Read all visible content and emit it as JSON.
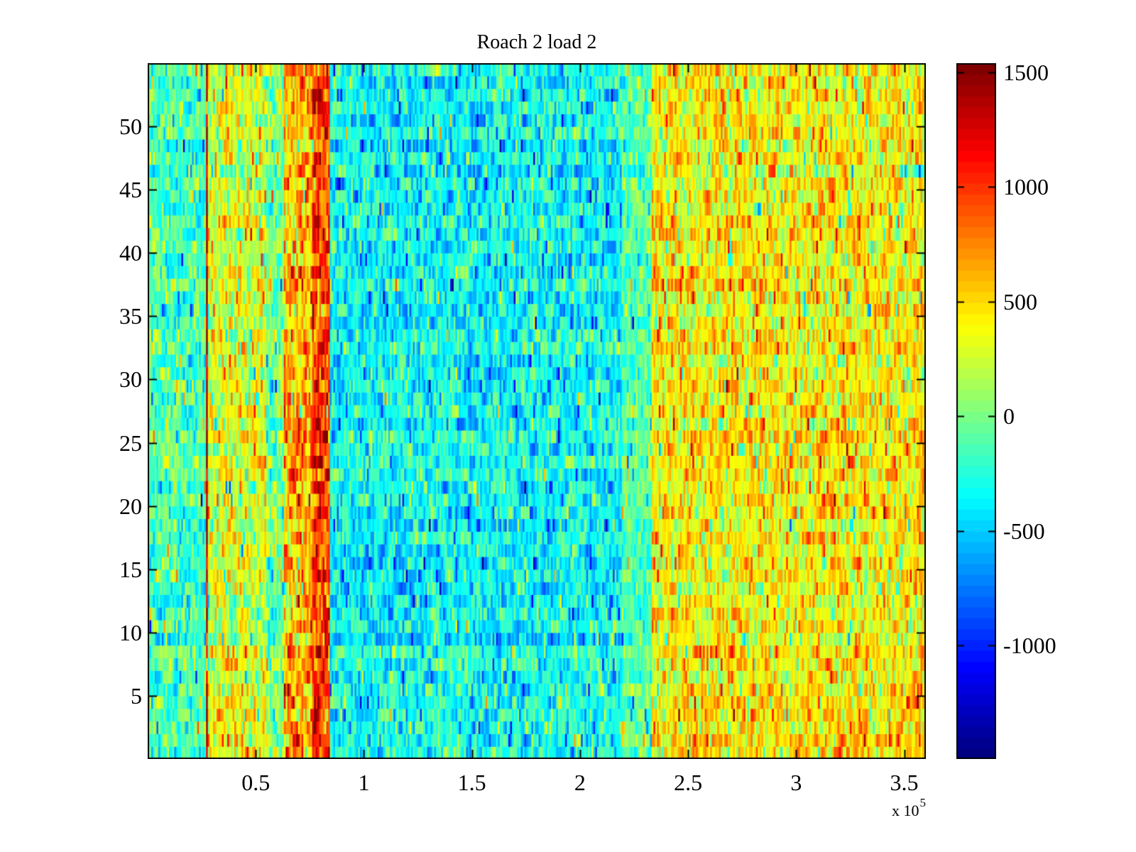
{
  "figure": {
    "background": "#ffffff"
  },
  "chart_data": {
    "type": "heatmap",
    "title": "Roach 2 load 2",
    "colormap": "jet",
    "colormap_stops": [
      "#000080",
      "#0000ff",
      "#00ffff",
      "#ffff00",
      "#ff0000",
      "#800000"
    ],
    "x_axis": {
      "range_e5": [
        0,
        3.6
      ],
      "tick_values_e5": [
        0.5,
        1,
        1.5,
        2,
        2.5,
        3,
        3.5
      ],
      "tick_labels": [
        "0.5",
        "1",
        "1.5",
        "2",
        "2.5",
        "3",
        "3.5"
      ],
      "exponent_prefix": "x 10",
      "exponent": "5"
    },
    "y_axis": {
      "range": [
        0,
        55
      ],
      "tick_values": [
        5,
        10,
        15,
        20,
        25,
        30,
        35,
        40,
        45,
        50
      ],
      "tick_labels": [
        "5",
        "10",
        "15",
        "20",
        "25",
        "30",
        "35",
        "40",
        "45",
        "50"
      ]
    },
    "colorbar": {
      "range": [
        -1495,
        1540
      ],
      "tick_values": [
        -1000,
        -500,
        0,
        500,
        1000,
        1500
      ],
      "tick_labels": [
        "-1000",
        "-500",
        "0",
        "500",
        "1000",
        "1500"
      ]
    },
    "grid": {
      "rows": 55,
      "cols": 440,
      "seed": 3,
      "row_jitter": 45,
      "col_corr": 0.35,
      "outlier_prob": 0.06
    },
    "bands": [
      {
        "x0": 0.0,
        "x1": 0.27,
        "mean": -140,
        "std": 220
      },
      {
        "x0": 0.27,
        "x1": 0.278,
        "mean": 1350,
        "std": 200
      },
      {
        "x0": 0.278,
        "x1": 0.548,
        "mean": 280,
        "std": 260
      },
      {
        "x0": 0.548,
        "x1": 0.627,
        "mean": 30,
        "std": 240
      },
      {
        "x0": 0.627,
        "x1": 0.76,
        "mean": 620,
        "std": 280
      },
      {
        "x0": 0.76,
        "x1": 0.845,
        "mean": 1020,
        "std": 260
      },
      {
        "x0": 0.845,
        "x1": 2.195,
        "mean": -330,
        "std": 220
      },
      {
        "x0": 2.195,
        "x1": 2.33,
        "mean": -90,
        "std": 180
      },
      {
        "x0": 2.33,
        "x1": 3.6,
        "mean": 420,
        "std": 250
      }
    ]
  }
}
